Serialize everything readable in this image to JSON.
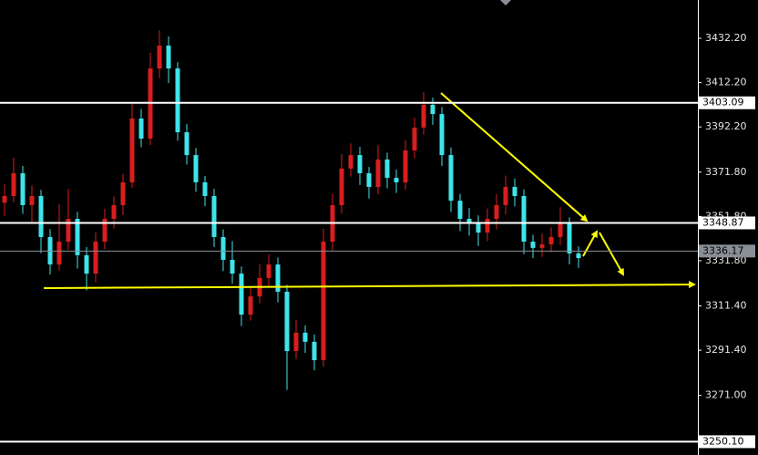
{
  "chart_data": {
    "type": "candlestick",
    "ylim": [
      3244.1,
      3449.5
    ],
    "yticks": [
      {
        "value": 3432.2,
        "label": "3432.20"
      },
      {
        "value": 3412.2,
        "label": "3412.20"
      },
      {
        "value": 3392.2,
        "label": "3392.20"
      },
      {
        "value": 3371.8,
        "label": "3371.80"
      },
      {
        "value": 3351.8,
        "label": "3351.80"
      },
      {
        "value": 3331.8,
        "label": "3331.80"
      },
      {
        "value": 3311.4,
        "label": "3311.40"
      },
      {
        "value": 3291.4,
        "label": "3291.40"
      },
      {
        "value": 3271,
        "label": "3271.00"
      }
    ],
    "up_color": "#d81e1e",
    "down_color": "#3fe3ea",
    "levels": [
      {
        "value": 3403.09,
        "label": "3403.09",
        "color": "#ffffff"
      },
      {
        "value": 3348.87,
        "label": "3348.87",
        "color": "#ffffff"
      },
      {
        "value": 3336.17,
        "label": "3336.17",
        "color": "#8a8f96"
      },
      {
        "value": 3250.1,
        "label": "3250.10",
        "color": "#ffffff"
      }
    ],
    "ohlc": [
      [
        3358.0,
        3366.4,
        3352.1,
        3361.0
      ],
      [
        3361.0,
        3378.3,
        3358.2,
        3371.3
      ],
      [
        3371.3,
        3374.6,
        3353.0,
        3356.9
      ],
      [
        3356.9,
        3365.7,
        3349.5,
        3361.0
      ],
      [
        3361.0,
        3363.8,
        3335.2,
        3342.5
      ],
      [
        3342.5,
        3346.1,
        3325.6,
        3330.1
      ],
      [
        3330.1,
        3357.3,
        3327.4,
        3340.4
      ],
      [
        3340.4,
        3364.2,
        3336.8,
        3350.7
      ],
      [
        3350.7,
        3353.9,
        3328.3,
        3334.3
      ],
      [
        3334.3,
        3338.0,
        3318.5,
        3326.0
      ],
      [
        3326.0,
        3344.6,
        3322.1,
        3340.4
      ],
      [
        3340.4,
        3355.2,
        3337.0,
        3350.7
      ],
      [
        3350.7,
        3360.8,
        3346.3,
        3356.9
      ],
      [
        3356.9,
        3371.0,
        3352.4,
        3367.2
      ],
      [
        3367.2,
        3402.5,
        3364.8,
        3396.0
      ],
      [
        3396.0,
        3400.3,
        3383.1,
        3386.9
      ],
      [
        3386.9,
        3425.7,
        3384.0,
        3418.6
      ],
      [
        3418.6,
        3435.8,
        3414.2,
        3428.9
      ],
      [
        3428.9,
        3433.1,
        3412.0,
        3418.6
      ],
      [
        3418.6,
        3421.4,
        3386.0,
        3389.8
      ],
      [
        3389.8,
        3393.5,
        3375.2,
        3379.5
      ],
      [
        3379.5,
        3382.7,
        3362.9,
        3367.2
      ],
      [
        3367.2,
        3370.1,
        3356.4,
        3361.0
      ],
      [
        3361.0,
        3364.3,
        3338.0,
        3342.5
      ],
      [
        3342.5,
        3345.9,
        3327.1,
        3332.2
      ],
      [
        3332.2,
        3340.6,
        3321.4,
        3326.0
      ],
      [
        3326.0,
        3329.2,
        3302.3,
        3307.5
      ],
      [
        3307.5,
        3320.4,
        3304.8,
        3315.7
      ],
      [
        3315.7,
        3330.2,
        3312.6,
        3324.0
      ],
      [
        3324.0,
        3334.8,
        3320.5,
        3330.1
      ],
      [
        3330.1,
        3333.2,
        3313.0,
        3317.8
      ],
      [
        3317.8,
        3320.9,
        3273.5,
        3291.0
      ],
      [
        3291.0,
        3305.1,
        3287.4,
        3299.3
      ],
      [
        3299.3,
        3302.6,
        3290.2,
        3295.2
      ],
      [
        3295.2,
        3298.5,
        3282.3,
        3286.9
      ],
      [
        3286.9,
        3346.2,
        3284.0,
        3340.4
      ],
      [
        3340.4,
        3362.1,
        3336.2,
        3356.9
      ],
      [
        3356.9,
        3380.0,
        3353.1,
        3373.4
      ],
      [
        3373.4,
        3384.7,
        3369.8,
        3379.5
      ],
      [
        3379.5,
        3383.2,
        3366.0,
        3371.3
      ],
      [
        3371.3,
        3374.1,
        3359.8,
        3365.1
      ],
      [
        3365.1,
        3383.9,
        3361.7,
        3377.5
      ],
      [
        3377.5,
        3380.6,
        3364.5,
        3369.2
      ],
      [
        3369.2,
        3373.0,
        3362.4,
        3367.2
      ],
      [
        3367.2,
        3386.3,
        3363.9,
        3381.6
      ],
      [
        3381.6,
        3396.4,
        3378.0,
        3391.9
      ],
      [
        3391.9,
        3408.0,
        3388.7,
        3402.2
      ],
      [
        3402.2,
        3405.5,
        3393.1,
        3398.0
      ],
      [
        3398.0,
        3401.2,
        3374.6,
        3379.5
      ],
      [
        3379.5,
        3382.9,
        3353.8,
        3358.9
      ],
      [
        3358.9,
        3362.0,
        3345.2,
        3350.7
      ],
      [
        3350.7,
        3355.6,
        3343.1,
        3348.7
      ],
      [
        3348.7,
        3352.3,
        3338.4,
        3344.5
      ],
      [
        3344.5,
        3355.4,
        3340.6,
        3350.7
      ],
      [
        3350.7,
        3361.8,
        3346.0,
        3356.9
      ],
      [
        3356.9,
        3370.2,
        3352.7,
        3365.1
      ],
      [
        3365.1,
        3368.9,
        3356.3,
        3361.0
      ],
      [
        3361.0,
        3364.0,
        3334.7,
        3340.4
      ],
      [
        3340.4,
        3343.5,
        3332.9,
        3337.6
      ],
      [
        3337.6,
        3344.1,
        3333.5,
        3339.2
      ],
      [
        3339.2,
        3346.8,
        3335.6,
        3342.5
      ],
      [
        3342.5,
        3356.0,
        3338.9,
        3348.7
      ],
      [
        3348.7,
        3351.4,
        3330.2,
        3335.1
      ],
      [
        3335.1,
        3338.3,
        3328.6,
        3333.0
      ]
    ]
  }
}
